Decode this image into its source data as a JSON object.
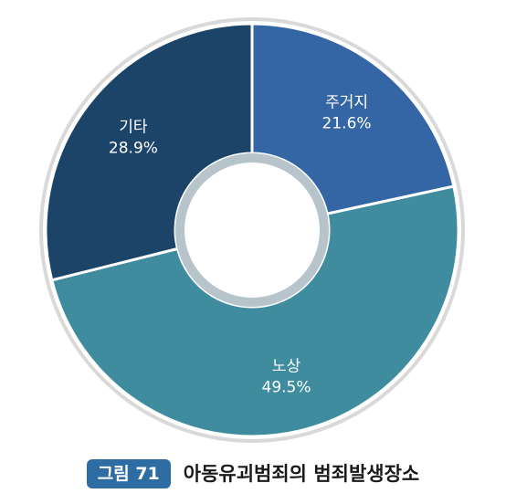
{
  "chart_data": {
    "type": "pie",
    "variant": "donut",
    "categories": [
      "주거지",
      "노상",
      "기타"
    ],
    "values": [
      21.6,
      49.5,
      28.9
    ],
    "value_labels": [
      "21.6%",
      "49.5%",
      "28.9%"
    ],
    "colors": [
      "#3466a6",
      "#3f8c9e",
      "#1c4468"
    ],
    "start": "12 o'clock, clockwise"
  },
  "caption": {
    "figure_label": "그림 71",
    "title": "아동유괴범죄의 범죄발생장소"
  }
}
